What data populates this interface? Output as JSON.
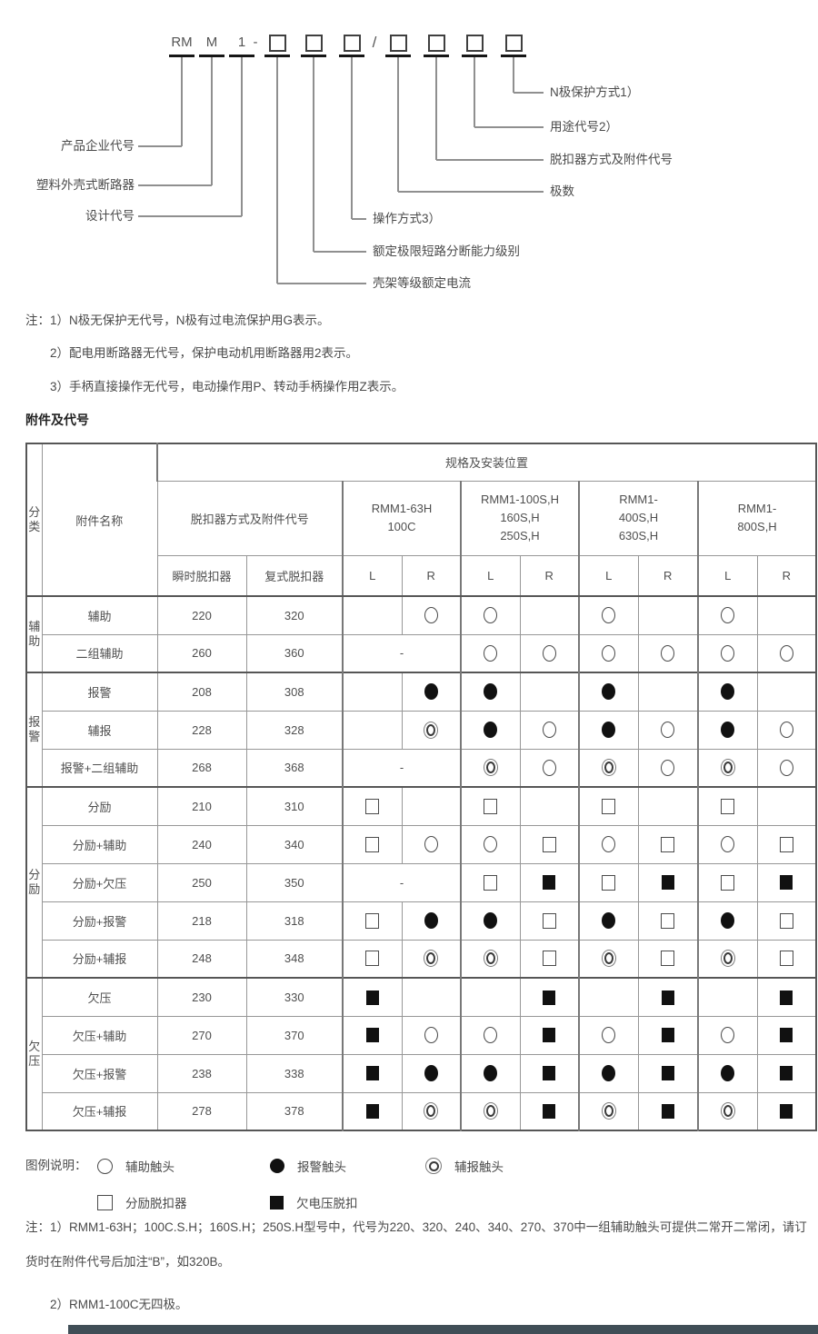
{
  "diagram": {
    "code_prefix": [
      "RM",
      "M",
      "1"
    ],
    "dash": "-",
    "slash": "/",
    "labels": {
      "left": [
        "产品企业代号",
        "塑料外壳式断路器",
        "设计代号"
      ],
      "mid": [
        "壳架等级额定电流",
        "额定极限短路分断能力级别",
        "操作方式3）"
      ],
      "right": [
        "极数",
        "脱扣器方式及附件代号",
        "用途代号2）",
        "N极保护方式1）"
      ]
    }
  },
  "notes_top": [
    "注：1）N极无保护无代号，N极有过电流保护用G表示。",
    "2）配电用断路器无代号，保护电动机用断路器用2表示。",
    "3）手柄直接操作无代号，电动操作用P、转动手柄操作用Z表示。"
  ],
  "section_title": "附件及代号",
  "table": {
    "dash": "-",
    "header": {
      "category": "分类",
      "name": "附件名称",
      "spec": "规格及安装位置",
      "release": "脱扣器方式及附件代号",
      "models": [
        "RMM1-63H\n100C",
        "RMM1-100S,H\n160S,H\n250S,H",
        "RMM1-\n400S,H\n630S,H",
        "RMM1-\n800S,H"
      ],
      "instant": "瞬时脱扣器",
      "compound": "复式脱扣器",
      "l": "L",
      "r": "R"
    },
    "groups": [
      {
        "label": "辅助",
        "rows": [
          {
            "name": "辅助",
            "instant": "220",
            "compound": "320",
            "dash63": false,
            "cells": [
              "",
              "o",
              "o",
              "",
              "o",
              "",
              "o",
              ""
            ]
          },
          {
            "name": "二组辅助",
            "instant": "260",
            "compound": "360",
            "dash63": true,
            "cells": [
              "o",
              "o",
              "o",
              "o",
              "o",
              "o"
            ]
          }
        ]
      },
      {
        "label": "报警",
        "rows": [
          {
            "name": "报警",
            "instant": "208",
            "compound": "308",
            "dash63": false,
            "cells": [
              "",
              "f",
              "f",
              "",
              "f",
              "",
              "f",
              ""
            ]
          },
          {
            "name": "辅报",
            "instant": "228",
            "compound": "328",
            "dash63": false,
            "cells": [
              "",
              "d",
              "f",
              "o",
              "f",
              "o",
              "f",
              "o"
            ]
          },
          {
            "name": "报警+二组辅助",
            "instant": "268",
            "compound": "368",
            "dash63": true,
            "cells": [
              "d",
              "o",
              "d",
              "o",
              "d",
              "o"
            ]
          }
        ]
      },
      {
        "label": "分励",
        "rows": [
          {
            "name": "分励",
            "instant": "210",
            "compound": "310",
            "dash63": false,
            "cells": [
              "s",
              "",
              "s",
              "",
              "s",
              "",
              "s",
              ""
            ]
          },
          {
            "name": "分励+辅助",
            "instant": "240",
            "compound": "340",
            "dash63": false,
            "cells": [
              "s",
              "o",
              "o",
              "s",
              "o",
              "s",
              "o",
              "s"
            ]
          },
          {
            "name": "分励+欠压",
            "instant": "250",
            "compound": "350",
            "dash63": true,
            "cells": [
              "s",
              "fs",
              "s",
              "fs",
              "s",
              "fs"
            ]
          },
          {
            "name": "分励+报警",
            "instant": "218",
            "compound": "318",
            "dash63": false,
            "cells": [
              "s",
              "f",
              "f",
              "s",
              "f",
              "s",
              "f",
              "s"
            ]
          },
          {
            "name": "分励+辅报",
            "instant": "248",
            "compound": "348",
            "dash63": false,
            "cells": [
              "s",
              "d",
              "d",
              "s",
              "d",
              "s",
              "d",
              "s"
            ]
          }
        ]
      },
      {
        "label": "欠压",
        "rows": [
          {
            "name": "欠压",
            "instant": "230",
            "compound": "330",
            "dash63": false,
            "cells": [
              "fs",
              "",
              "",
              "fs",
              "",
              "fs",
              "",
              "fs"
            ]
          },
          {
            "name": "欠压+辅助",
            "instant": "270",
            "compound": "370",
            "dash63": false,
            "cells": [
              "fs",
              "o",
              "o",
              "fs",
              "o",
              "fs",
              "o",
              "fs"
            ]
          },
          {
            "name": "欠压+报警",
            "instant": "238",
            "compound": "338",
            "dash63": false,
            "cells": [
              "fs",
              "f",
              "f",
              "fs",
              "f",
              "fs",
              "f",
              "fs"
            ]
          },
          {
            "name": "欠压+辅报",
            "instant": "278",
            "compound": "378",
            "dash63": false,
            "cells": [
              "fs",
              "d",
              "d",
              "fs",
              "d",
              "fs",
              "d",
              "fs"
            ]
          }
        ]
      }
    ]
  },
  "legend": {
    "title": "图例说明：",
    "rows": [
      [
        {
          "sym": "o",
          "text": "辅助触头"
        },
        {
          "sym": "f",
          "text": "报警触头"
        },
        {
          "sym": "d",
          "text": "辅报触头"
        }
      ],
      [
        {
          "sym": "s",
          "text": "分励脱扣器"
        },
        {
          "sym": "fs",
          "text": "欠电压脱扣"
        }
      ]
    ]
  },
  "notes_bottom": [
    "注：1）RMM1-63H；100C.S.H；160S.H；250S.H型号中，代号为220、320、240、340、270、370中一组辅助触头可提供二常开二常闭，请订货时在附件代号后加注“B”，如320B。",
    "2）RMM1-100C无四极。"
  ]
}
